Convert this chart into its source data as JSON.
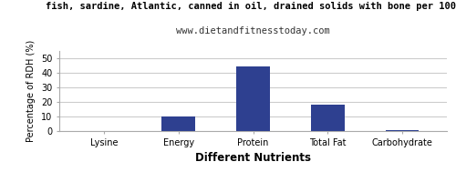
{
  "title_line1": "fish, sardine, Atlantic, canned in oil, drained solids with bone per 100",
  "title_line2": "www.dietandfitnesstoday.com",
  "categories": [
    "Lysine",
    "Energy",
    "Protein",
    "Total Fat",
    "Carbohydrate"
  ],
  "values": [
    0,
    10.2,
    44.2,
    18.2,
    0.5
  ],
  "bar_color": "#2e4090",
  "xlabel": "Different Nutrients",
  "ylabel": "Percentage of RDH (%)",
  "ylim": [
    0,
    55
  ],
  "yticks": [
    0,
    10,
    20,
    30,
    40,
    50
  ],
  "background_color": "#ffffff",
  "plot_bg_color": "#ffffff",
  "grid_color": "#cccccc",
  "title_fontsize": 7.5,
  "subtitle_fontsize": 7.5,
  "ylabel_fontsize": 7,
  "tick_fontsize": 7,
  "xlabel_fontsize": 8.5,
  "xlabel_fontweight": "bold"
}
